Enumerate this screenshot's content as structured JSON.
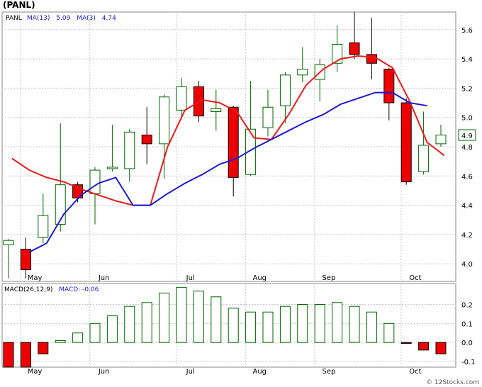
{
  "title": "(PANL)",
  "watermark": "© 12Stocks.com",
  "last_price_label": "4.9",
  "colors": {
    "up": "#006400",
    "down": "#ee0000",
    "ma_fast": "#1c1cd0",
    "ma_slow": "#e81c1c",
    "macd_bar": "#006400",
    "macd_neg": "#ee0000",
    "grid": "#c8c8c8",
    "last_box": "#006400"
  },
  "chart_data": [
    {
      "type": "candlestick",
      "legend": {
        "symbol": "PANL",
        "ma13_label": "MA(13)",
        "ma13_value": "5.09",
        "ma3_label": "MA(3)",
        "ma3_value": "4.74"
      },
      "ylim": [
        3.88,
        5.72
      ],
      "yticks": [
        "4.0",
        "4.2",
        "4.4",
        "4.6",
        "4.8",
        "5.0",
        "5.2",
        "5.4",
        "5.6"
      ],
      "yticks_values": [
        4.0,
        4.2,
        4.4,
        4.6,
        4.8,
        5.0,
        5.2,
        5.4,
        5.6
      ],
      "xticks": [
        "May",
        "Jun",
        "Jul",
        "Aug",
        "Sep",
        "Oct"
      ],
      "xticks_index": [
        1.2,
        5.2,
        10.2,
        14.2,
        18.2,
        23.2
      ],
      "candles": [
        {
          "o": 4.13,
          "h": 4.17,
          "l": 3.9,
          "c": 4.16
        },
        {
          "o": 4.1,
          "h": 4.18,
          "l": 3.9,
          "c": 3.96
        },
        {
          "o": 4.18,
          "h": 4.48,
          "l": 4.14,
          "c": 4.33
        },
        {
          "o": 4.27,
          "h": 4.96,
          "l": 4.22,
          "c": 4.54
        },
        {
          "o": 4.54,
          "h": 4.56,
          "l": 4.42,
          "c": 4.45
        },
        {
          "o": 4.48,
          "h": 4.66,
          "l": 4.27,
          "c": 4.64
        },
        {
          "o": 4.65,
          "h": 4.95,
          "l": 4.63,
          "c": 4.66
        },
        {
          "o": 4.65,
          "h": 4.92,
          "l": 4.56,
          "c": 4.9
        },
        {
          "o": 4.88,
          "h": 5.07,
          "l": 4.68,
          "c": 4.82
        },
        {
          "o": 4.82,
          "h": 5.16,
          "l": 4.58,
          "c": 5.14
        },
        {
          "o": 5.05,
          "h": 5.27,
          "l": 4.99,
          "c": 5.21
        },
        {
          "o": 5.21,
          "h": 5.25,
          "l": 4.97,
          "c": 5.01
        },
        {
          "o": 5.04,
          "h": 5.19,
          "l": 4.91,
          "c": 5.06
        },
        {
          "o": 5.07,
          "h": 5.08,
          "l": 4.46,
          "c": 4.59
        },
        {
          "o": 4.61,
          "h": 5.25,
          "l": 4.6,
          "c": 4.92
        },
        {
          "o": 4.93,
          "h": 5.19,
          "l": 4.87,
          "c": 5.07
        },
        {
          "o": 5.08,
          "h": 5.31,
          "l": 4.96,
          "c": 5.29
        },
        {
          "o": 5.29,
          "h": 5.48,
          "l": 5.24,
          "c": 5.33
        },
        {
          "o": 5.26,
          "h": 5.4,
          "l": 5.11,
          "c": 5.36
        },
        {
          "o": 5.37,
          "h": 5.63,
          "l": 5.31,
          "c": 5.5
        },
        {
          "o": 5.51,
          "h": 5.72,
          "l": 5.4,
          "c": 5.43
        },
        {
          "o": 5.43,
          "h": 5.68,
          "l": 5.26,
          "c": 5.37
        },
        {
          "o": 5.33,
          "h": 5.34,
          "l": 4.98,
          "c": 5.1
        },
        {
          "o": 5.1,
          "h": 5.13,
          "l": 4.54,
          "c": 4.56
        },
        {
          "o": 4.63,
          "h": 5.04,
          "l": 4.61,
          "c": 4.81
        },
        {
          "o": 4.82,
          "h": 4.95,
          "l": 4.8,
          "c": 4.88
        }
      ],
      "ma13": [
        [
          1.2,
          4.08
        ],
        [
          2.2,
          4.14
        ],
        [
          3.2,
          4.34
        ],
        [
          4.2,
          4.47
        ],
        [
          5.2,
          4.55
        ],
        [
          6.2,
          4.59
        ],
        [
          7.2,
          4.4
        ],
        [
          8.2,
          4.4
        ],
        [
          9.2,
          4.48
        ],
        [
          10.2,
          4.55
        ],
        [
          11.2,
          4.61
        ],
        [
          12.2,
          4.68
        ],
        [
          13.2,
          4.72
        ],
        [
          14.2,
          4.79
        ],
        [
          15.2,
          4.85
        ],
        [
          16.2,
          4.91
        ],
        [
          17.2,
          4.97
        ],
        [
          18.2,
          5.02
        ],
        [
          19.2,
          5.09
        ],
        [
          20.2,
          5.13
        ],
        [
          21.2,
          5.17
        ],
        [
          22.2,
          5.17
        ],
        [
          23.2,
          5.1
        ],
        [
          24.2,
          5.08
        ]
      ],
      "ma3": [
        [
          0.2,
          4.72
        ],
        [
          1.2,
          4.64
        ],
        [
          2.2,
          4.59
        ],
        [
          3.2,
          4.56
        ],
        [
          4.2,
          4.51
        ],
        [
          5.2,
          4.47
        ],
        [
          6.2,
          4.43
        ],
        [
          7.2,
          4.4
        ],
        [
          8.2,
          4.4
        ],
        [
          9.2,
          4.8
        ],
        [
          10.2,
          5.05
        ],
        [
          11.2,
          5.12
        ],
        [
          12.2,
          5.1
        ],
        [
          13.2,
          5.04
        ],
        [
          14.2,
          4.86
        ],
        [
          15.2,
          4.85
        ],
        [
          16.2,
          5.02
        ],
        [
          17.2,
          5.22
        ],
        [
          18.2,
          5.33
        ],
        [
          19.2,
          5.4
        ],
        [
          20.2,
          5.42
        ],
        [
          21.2,
          5.41
        ],
        [
          22.2,
          5.34
        ],
        [
          23.2,
          5.11
        ],
        [
          24.2,
          4.83
        ],
        [
          25.2,
          4.74
        ]
      ]
    },
    {
      "type": "bar",
      "legend": {
        "params": "MACD(26,12,9)",
        "label": "MACD:",
        "value": "-0.06"
      },
      "ylim": [
        -0.13,
        0.31
      ],
      "yticks": [
        "-0.1",
        "0.0",
        "0.1",
        "0.2"
      ],
      "yticks_values": [
        -0.1,
        0.0,
        0.1,
        0.2
      ],
      "xticks": [
        "May",
        "Jun",
        "Jul",
        "Aug",
        "Sep",
        "Oct"
      ],
      "xticks_index": [
        1.2,
        5.2,
        10.2,
        14.2,
        18.2,
        23.2
      ],
      "values": [
        -0.13,
        -0.13,
        -0.06,
        0.01,
        0.05,
        0.1,
        0.14,
        0.19,
        0.21,
        0.26,
        0.29,
        0.27,
        0.24,
        0.18,
        0.16,
        0.16,
        0.19,
        0.2,
        0.2,
        0.21,
        0.19,
        0.16,
        0.1,
        -0.005,
        -0.04,
        -0.06
      ]
    }
  ]
}
